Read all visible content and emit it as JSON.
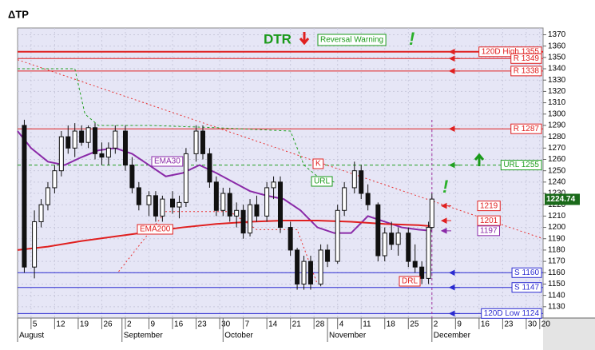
{
  "chart_data": {
    "type": "candlestick",
    "title": "ΔTP",
    "xlim": [
      1,
      157
    ],
    "ylim": [
      1120,
      1376
    ],
    "yticks": [
      1130,
      1140,
      1150,
      1160,
      1170,
      1180,
      1190,
      1200,
      1210,
      1220,
      1230,
      1240,
      1250,
      1260,
      1270,
      1280,
      1290,
      1300,
      1310,
      1320,
      1330,
      1340,
      1350,
      1360,
      1370
    ],
    "xticks": [
      5,
      12,
      19,
      26,
      {
        "value": 33,
        "label": "2"
      },
      {
        "value": 40,
        "label": "9"
      },
      {
        "value": 47,
        "label": "16"
      },
      {
        "value": 54,
        "label": "23"
      },
      {
        "value": 61,
        "label": "30"
      },
      {
        "value": 68,
        "label": "7"
      },
      {
        "value": 75,
        "label": "14"
      },
      {
        "value": 82,
        "label": "21"
      },
      {
        "value": 89,
        "label": "28"
      },
      {
        "value": 96,
        "label": "4"
      },
      {
        "value": 103,
        "label": "11"
      },
      {
        "value": 110,
        "label": "18"
      },
      {
        "value": 117,
        "label": "25"
      },
      {
        "value": 124,
        "label": "2"
      },
      {
        "value": 131,
        "label": "9"
      },
      {
        "value": 138,
        "label": "16"
      },
      {
        "value": 145,
        "label": "23"
      },
      {
        "value": 152,
        "label": "30"
      },
      {
        "value": 156,
        "label": "20"
      }
    ],
    "months": [
      {
        "value": 1,
        "label": "August"
      },
      {
        "value": 32,
        "label": "September"
      },
      {
        "value": 62,
        "label": "October"
      },
      {
        "value": 93,
        "label": "November"
      },
      {
        "value": 124,
        "label": "December"
      }
    ],
    "grid": true,
    "candles": [
      {
        "d": 3,
        "o": 1290,
        "h": 1295,
        "l": 1160,
        "c": 1165
      },
      {
        "d": 6,
        "o": 1165,
        "h": 1215,
        "l": 1155,
        "c": 1205
      },
      {
        "d": 8,
        "o": 1205,
        "h": 1225,
        "l": 1200,
        "c": 1220
      },
      {
        "d": 10,
        "o": 1220,
        "h": 1240,
        "l": 1215,
        "c": 1235
      },
      {
        "d": 12,
        "o": 1235,
        "h": 1255,
        "l": 1230,
        "c": 1250
      },
      {
        "d": 14,
        "o": 1250,
        "h": 1285,
        "l": 1245,
        "c": 1280
      },
      {
        "d": 16,
        "o": 1280,
        "h": 1290,
        "l": 1265,
        "c": 1270
      },
      {
        "d": 18,
        "o": 1270,
        "h": 1292,
        "l": 1262,
        "c": 1285
      },
      {
        "d": 20,
        "o": 1285,
        "h": 1290,
        "l": 1272,
        "c": 1275
      },
      {
        "d": 22,
        "o": 1275,
        "h": 1290,
        "l": 1270,
        "c": 1288
      },
      {
        "d": 24,
        "o": 1288,
        "h": 1292,
        "l": 1260,
        "c": 1265
      },
      {
        "d": 26,
        "o": 1265,
        "h": 1275,
        "l": 1255,
        "c": 1262
      },
      {
        "d": 28,
        "o": 1262,
        "h": 1275,
        "l": 1255,
        "c": 1270
      },
      {
        "d": 30,
        "o": 1270,
        "h": 1290,
        "l": 1265,
        "c": 1285
      },
      {
        "d": 33,
        "o": 1285,
        "h": 1290,
        "l": 1250,
        "c": 1255
      },
      {
        "d": 35,
        "o": 1255,
        "h": 1262,
        "l": 1230,
        "c": 1235
      },
      {
        "d": 37,
        "o": 1235,
        "h": 1240,
        "l": 1215,
        "c": 1220
      },
      {
        "d": 40,
        "o": 1220,
        "h": 1232,
        "l": 1210,
        "c": 1228
      },
      {
        "d": 42,
        "o": 1228,
        "h": 1232,
        "l": 1205,
        "c": 1210
      },
      {
        "d": 44,
        "o": 1210,
        "h": 1228,
        "l": 1205,
        "c": 1225
      },
      {
        "d": 47,
        "o": 1225,
        "h": 1232,
        "l": 1212,
        "c": 1218
      },
      {
        "d": 49,
        "o": 1218,
        "h": 1228,
        "l": 1208,
        "c": 1222
      },
      {
        "d": 51,
        "o": 1222,
        "h": 1270,
        "l": 1218,
        "c": 1265
      },
      {
        "d": 54,
        "o": 1265,
        "h": 1290,
        "l": 1258,
        "c": 1285
      },
      {
        "d": 56,
        "o": 1285,
        "h": 1290,
        "l": 1260,
        "c": 1265
      },
      {
        "d": 58,
        "o": 1265,
        "h": 1270,
        "l": 1235,
        "c": 1240
      },
      {
        "d": 60,
        "o": 1240,
        "h": 1245,
        "l": 1210,
        "c": 1215
      },
      {
        "d": 62,
        "o": 1215,
        "h": 1235,
        "l": 1210,
        "c": 1230
      },
      {
        "d": 64,
        "o": 1230,
        "h": 1235,
        "l": 1205,
        "c": 1210
      },
      {
        "d": 66,
        "o": 1210,
        "h": 1222,
        "l": 1200,
        "c": 1215
      },
      {
        "d": 68,
        "o": 1215,
        "h": 1220,
        "l": 1190,
        "c": 1195
      },
      {
        "d": 70,
        "o": 1195,
        "h": 1225,
        "l": 1192,
        "c": 1220
      },
      {
        "d": 72,
        "o": 1220,
        "h": 1228,
        "l": 1205,
        "c": 1210
      },
      {
        "d": 75,
        "o": 1210,
        "h": 1240,
        "l": 1205,
        "c": 1235
      },
      {
        "d": 77,
        "o": 1235,
        "h": 1245,
        "l": 1225,
        "c": 1240
      },
      {
        "d": 79,
        "o": 1240,
        "h": 1245,
        "l": 1195,
        "c": 1200
      },
      {
        "d": 82,
        "o": 1200,
        "h": 1205,
        "l": 1175,
        "c": 1180
      },
      {
        "d": 84,
        "o": 1180,
        "h": 1182,
        "l": 1145,
        "c": 1150
      },
      {
        "d": 86,
        "o": 1150,
        "h": 1175,
        "l": 1145,
        "c": 1170
      },
      {
        "d": 88,
        "o": 1170,
        "h": 1175,
        "l": 1145,
        "c": 1150
      },
      {
        "d": 91,
        "o": 1150,
        "h": 1185,
        "l": 1148,
        "c": 1180
      },
      {
        "d": 93,
        "o": 1180,
        "h": 1185,
        "l": 1165,
        "c": 1170
      },
      {
        "d": 96,
        "o": 1170,
        "h": 1220,
        "l": 1168,
        "c": 1215
      },
      {
        "d": 98,
        "o": 1215,
        "h": 1240,
        "l": 1210,
        "c": 1235
      },
      {
        "d": 101,
        "o": 1235,
        "h": 1258,
        "l": 1230,
        "c": 1250
      },
      {
        "d": 103,
        "o": 1250,
        "h": 1255,
        "l": 1225,
        "c": 1230
      },
      {
        "d": 105,
        "o": 1230,
        "h": 1238,
        "l": 1215,
        "c": 1220
      },
      {
        "d": 108,
        "o": 1220,
        "h": 1222,
        "l": 1170,
        "c": 1175
      },
      {
        "d": 110,
        "o": 1175,
        "h": 1200,
        "l": 1170,
        "c": 1195
      },
      {
        "d": 112,
        "o": 1195,
        "h": 1205,
        "l": 1180,
        "c": 1185
      },
      {
        "d": 114,
        "o": 1185,
        "h": 1200,
        "l": 1175,
        "c": 1195
      },
      {
        "d": 117,
        "o": 1195,
        "h": 1200,
        "l": 1165,
        "c": 1170
      },
      {
        "d": 119,
        "o": 1170,
        "h": 1185,
        "l": 1160,
        "c": 1165
      },
      {
        "d": 121,
        "o": 1165,
        "h": 1170,
        "l": 1150,
        "c": 1155
      },
      {
        "d": 123,
        "o": 1155,
        "h": 1205,
        "l": 1150,
        "c": 1200
      },
      {
        "d": 124,
        "o": 1200,
        "h": 1230,
        "l": 1198,
        "c": 1225
      }
    ],
    "series": [
      {
        "name": "EMA30",
        "color": "#8a2aa8",
        "dash": "none",
        "x": [
          1,
          5,
          10,
          15,
          20,
          25,
          30,
          35,
          40,
          45,
          50,
          55,
          60,
          65,
          70,
          75,
          80,
          85,
          90,
          95,
          100,
          105,
          110,
          115,
          120,
          124
        ],
        "values": [
          1285,
          1270,
          1258,
          1255,
          1262,
          1268,
          1270,
          1265,
          1255,
          1245,
          1248,
          1255,
          1248,
          1240,
          1232,
          1228,
          1225,
          1215,
          1200,
          1195,
          1195,
          1210,
          1205,
          1200,
          1198,
          1197
        ]
      },
      {
        "name": "EMA200",
        "color": "#e02020",
        "dash": "none",
        "x": [
          1,
          10,
          20,
          30,
          40,
          50,
          60,
          70,
          80,
          90,
          100,
          110,
          120,
          124
        ],
        "values": [
          1180,
          1183,
          1188,
          1192,
          1196,
          1200,
          1203,
          1205,
          1206,
          1206,
          1205,
          1203,
          1202,
          1201
        ]
      },
      {
        "color": "#e83030",
        "dash": "2 3",
        "x": [
          1,
          157
        ],
        "values": [
          1348,
          1190
        ]
      },
      {
        "color": "#22a022",
        "dash": "3 3",
        "x": [
          1,
          18,
          21,
          25,
          40,
          60,
          82,
          86,
          90,
          95
        ],
        "values": [
          1340,
          1340,
          1300,
          1290,
          1290,
          1288,
          1285,
          1255,
          1245,
          1240
        ]
      },
      {
        "color": "#e83030",
        "dash": "2 3",
        "x": [
          31,
          45,
          64,
          72,
          84,
          90
        ],
        "values": [
          1161,
          1214,
          1214,
          1198,
          1198,
          1150
        ]
      }
    ],
    "levels": [
      {
        "label": "120D High 1355",
        "value": 1355,
        "color": "#e02020",
        "dash": "none"
      },
      {
        "label": "R 1349",
        "value": 1349,
        "color": "#e02020",
        "dash": "none"
      },
      {
        "label": "R 1338",
        "value": 1338,
        "color": "#e02020",
        "dash": "none"
      },
      {
        "label": "R 1287",
        "value": 1287,
        "color": "#e02020",
        "dash": "none"
      },
      {
        "label": "URL 1255",
        "value": 1255,
        "color": "#22a022",
        "dash": "4 3"
      },
      {
        "label": "S 1160",
        "value": 1160,
        "color": "#2a2ad0",
        "dash": "none"
      },
      {
        "label": "S 1147",
        "value": 1147,
        "color": "#2a2ad0",
        "dash": "none"
      },
      {
        "label": "120D Low 1124",
        "value": 1124,
        "color": "#2a2ad0",
        "dash": "none"
      }
    ],
    "price_markers": [
      {
        "value": 1219,
        "color": "#e02020"
      },
      {
        "value": 1201,
        "color": "#e02020"
      },
      {
        "value": 1197,
        "color": "#8a2aa8"
      }
    ],
    "last_price": 1224.74,
    "annotations": [
      "DTR",
      "Reversal Warning",
      "!",
      "!",
      "K",
      "URL",
      "DRL"
    ]
  }
}
